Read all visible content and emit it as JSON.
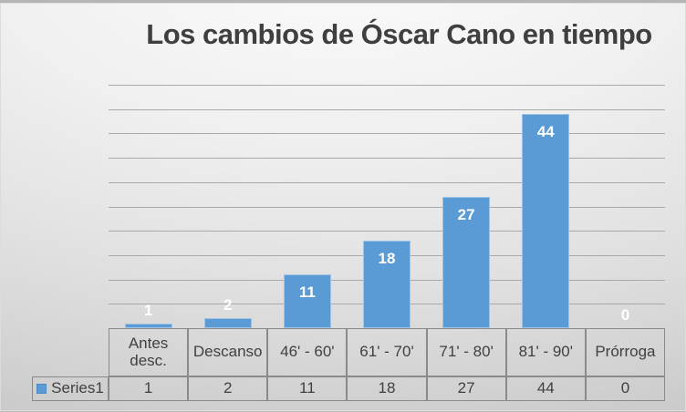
{
  "slide": {
    "title": "Los cambios de Óscar Cano en tiempo"
  },
  "chart_data": {
    "type": "bar",
    "title": "Los cambios de Óscar Cano en tiempo",
    "categories": [
      "Antes desc.",
      "Descanso",
      "46' - 60'",
      "61' - 70'",
      "71' - 80'",
      "81' - 90'",
      "Prórroga"
    ],
    "series": [
      {
        "name": "Series1",
        "values": [
          1,
          2,
          11,
          18,
          27,
          44,
          0
        ]
      }
    ],
    "ylim": [
      0,
      50
    ],
    "gridline_step": 5,
    "grid": true,
    "y_axis_labels_visible": false,
    "data_labels": "inside-end",
    "legend_position": "data-table",
    "colors": {
      "bar_fill": "#5b9bd5",
      "bar_border": "#9dc3e6",
      "data_label": "#ffffff",
      "gridline": "#a9a9a9",
      "table_border": "#8a8a8a",
      "text": "#404040",
      "title": "#3f3f3f"
    }
  }
}
